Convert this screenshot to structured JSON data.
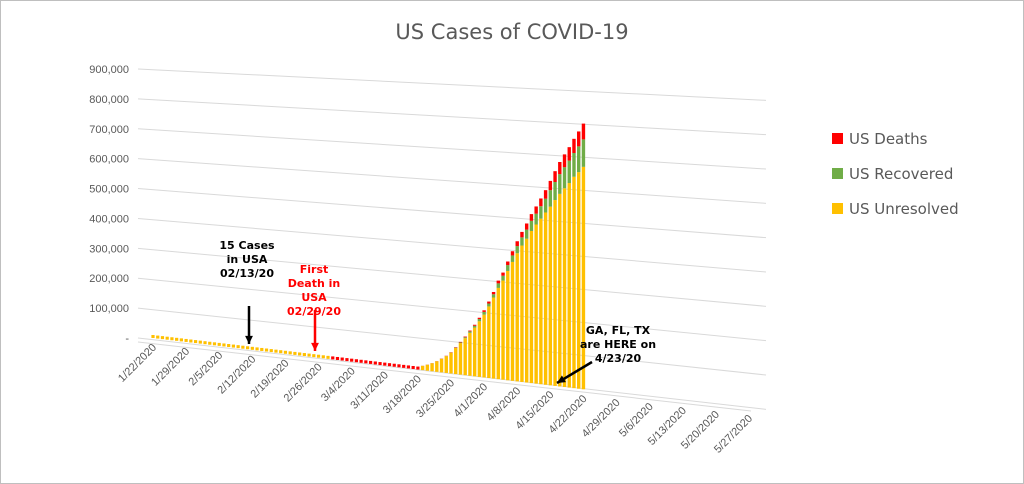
{
  "chart_data": {
    "type": "bar",
    "stacked": true,
    "title": "US Cases of COVID-19",
    "y_ticks": [
      "900,000",
      "800,000",
      "700,000",
      "600,000",
      "500,000",
      "400,000",
      "300,000",
      "200,000",
      "100,000",
      "-"
    ],
    "ylim": [
      0,
      900000
    ],
    "x_ticks": [
      "1/22/2020",
      "1/29/2020",
      "2/5/2020",
      "2/12/2020",
      "2/19/2020",
      "2/26/2020",
      "3/4/2020",
      "3/11/2020",
      "3/18/2020",
      "3/25/2020",
      "4/1/2020",
      "4/8/2020",
      "4/15/2020",
      "4/22/2020",
      "4/29/2020",
      "5/6/2020",
      "5/13/2020",
      "5/20/2020",
      "5/27/2020"
    ],
    "x_start": "1/22/2020",
    "x_end": "5/27/2020",
    "grid": true,
    "legend_position": "right",
    "series": [
      {
        "name": "US Unresolved",
        "color": "#ffc000"
      },
      {
        "name": "US Recovered",
        "color": "#70ad47"
      },
      {
        "name": "US Deaths",
        "color": "#ff0000"
      }
    ],
    "data": [
      {
        "date": "3/19/2020",
        "unresolved": 13500,
        "recovered": 100,
        "deaths": 200
      },
      {
        "date": "3/20/2020",
        "unresolved": 18800,
        "recovered": 150,
        "deaths": 250
      },
      {
        "date": "3/21/2020",
        "unresolved": 25000,
        "recovered": 170,
        "deaths": 330
      },
      {
        "date": "3/22/2020",
        "unresolved": 32800,
        "recovered": 180,
        "deaths": 420
      },
      {
        "date": "3/23/2020",
        "unresolved": 42500,
        "recovered": 300,
        "deaths": 550
      },
      {
        "date": "3/24/2020",
        "unresolved": 52400,
        "recovered": 350,
        "deaths": 700
      },
      {
        "date": "3/25/2020",
        "unresolved": 64900,
        "recovered": 400,
        "deaths": 950
      },
      {
        "date": "3/26/2020",
        "unresolved": 81000,
        "recovered": 1200,
        "deaths": 1300
      },
      {
        "date": "3/27/2020",
        "unresolved": 98000,
        "recovered": 2100,
        "deaths": 1700
      },
      {
        "date": "3/28/2020",
        "unresolved": 115000,
        "recovered": 2700,
        "deaths": 2200
      },
      {
        "date": "3/29/2020",
        "unresolved": 133000,
        "recovered": 4600,
        "deaths": 2500
      },
      {
        "date": "3/30/2020",
        "unresolved": 151000,
        "recovered": 5600,
        "deaths": 3100
      },
      {
        "date": "3/31/2020",
        "unresolved": 172000,
        "recovered": 7000,
        "deaths": 3900
      },
      {
        "date": "4/1/2020",
        "unresolved": 194000,
        "recovered": 8500,
        "deaths": 5000
      },
      {
        "date": "4/2/2020",
        "unresolved": 221000,
        "recovered": 9000,
        "deaths": 6000
      },
      {
        "date": "4/3/2020",
        "unresolved": 250000,
        "recovered": 10000,
        "deaths": 7000
      },
      {
        "date": "4/4/2020",
        "unresolved": 281000,
        "recovered": 14000,
        "deaths": 8500
      },
      {
        "date": "4/5/2020",
        "unresolved": 305000,
        "recovered": 15000,
        "deaths": 9600
      },
      {
        "date": "4/6/2020",
        "unresolved": 336000,
        "recovered": 18000,
        "deaths": 11000
      },
      {
        "date": "4/7/2020",
        "unresolved": 365000,
        "recovered": 20000,
        "deaths": 12900
      },
      {
        "date": "4/8/2020",
        "unresolved": 393000,
        "recovered": 22000,
        "deaths": 14800
      },
      {
        "date": "4/9/2020",
        "unresolved": 418000,
        "recovered": 25000,
        "deaths": 16700
      },
      {
        "date": "4/10/2020",
        "unresolved": 440000,
        "recovered": 28000,
        "deaths": 18700
      },
      {
        "date": "4/11/2020",
        "unresolved": 465000,
        "recovered": 31000,
        "deaths": 20600
      },
      {
        "date": "4/12/2020",
        "unresolved": 486000,
        "recovered": 33000,
        "deaths": 22100
      },
      {
        "date": "4/13/2020",
        "unresolved": 505000,
        "recovered": 38000,
        "deaths": 23600
      },
      {
        "date": "4/14/2020",
        "unresolved": 525000,
        "recovered": 42000,
        "deaths": 26000
      },
      {
        "date": "4/15/2020",
        "unresolved": 544000,
        "recovered": 50000,
        "deaths": 28300
      },
      {
        "date": "4/16/2020",
        "unresolved": 565000,
        "recovered": 55000,
        "deaths": 32900
      },
      {
        "date": "4/17/2020",
        "unresolved": 585000,
        "recovered": 60000,
        "deaths": 36800
      },
      {
        "date": "4/18/2020",
        "unresolved": 603000,
        "recovered": 64000,
        "deaths": 38900
      },
      {
        "date": "4/19/2020",
        "unresolved": 620000,
        "recovered": 68000,
        "deaths": 40700
      },
      {
        "date": "4/20/2020",
        "unresolved": 640000,
        "recovered": 72000,
        "deaths": 42900
      },
      {
        "date": "4/21/2020",
        "unresolved": 655000,
        "recovered": 78000,
        "deaths": 45100
      },
      {
        "date": "4/22/2020",
        "unresolved": 672000,
        "recovered": 83000,
        "deaths": 47700
      }
    ],
    "annotations": [
      {
        "lines": [
          "15 Cases",
          "in USA",
          "02/13/20"
        ],
        "color": "#000000",
        "date": "2/13/2020"
      },
      {
        "lines": [
          "First",
          "Death in",
          "USA",
          "02/29/20"
        ],
        "color": "#ff0000",
        "date": "2/29/2020"
      },
      {
        "lines": [
          "GA, FL, TX",
          "are  HERE on",
          "4/23/20"
        ],
        "color": "#000000",
        "date": "4/23/2020"
      }
    ]
  }
}
